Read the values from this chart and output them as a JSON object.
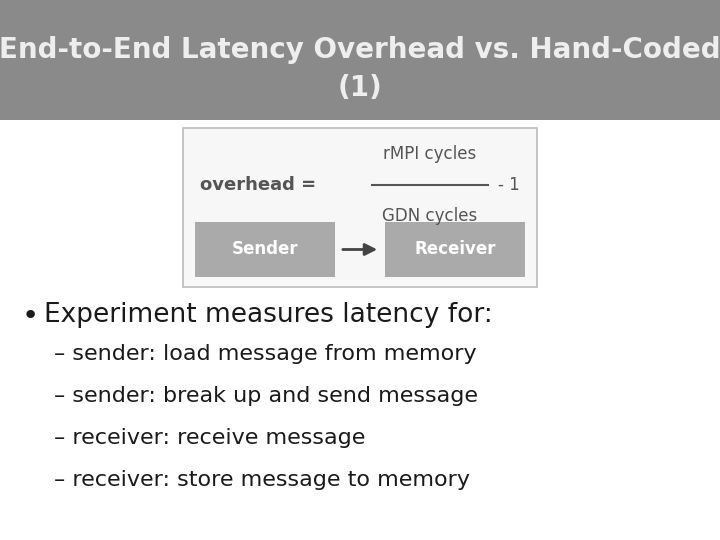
{
  "title_line1": "End-to-End Latency Overhead vs. Hand-Coded",
  "title_line2": "(1)",
  "title_bg_color": "#8a8a8a",
  "title_text_color": "#eeeeee",
  "title_fontsize": 20,
  "slide_bg_color": "#d8d8d8",
  "content_bg_color": "#ffffff",
  "box_bg_color": "#f7f7f7",
  "box_border_color": "#bbbbbb",
  "formula_text_color": "#555555",
  "sender_receiver_box_color": "#aaaaaa",
  "sender_receiver_text_color": "#ffffff",
  "bullet_text_color": "#1a1a1a",
  "bullet_main": "Experiment measures latency for:",
  "bullet_main_fontsize": 19,
  "sub_bullets": [
    "– sender: load message from memory",
    "– sender: break up and send message",
    "– receiver: receive message",
    "– receiver: store message to memory"
  ],
  "sub_bullet_fontsize": 16
}
